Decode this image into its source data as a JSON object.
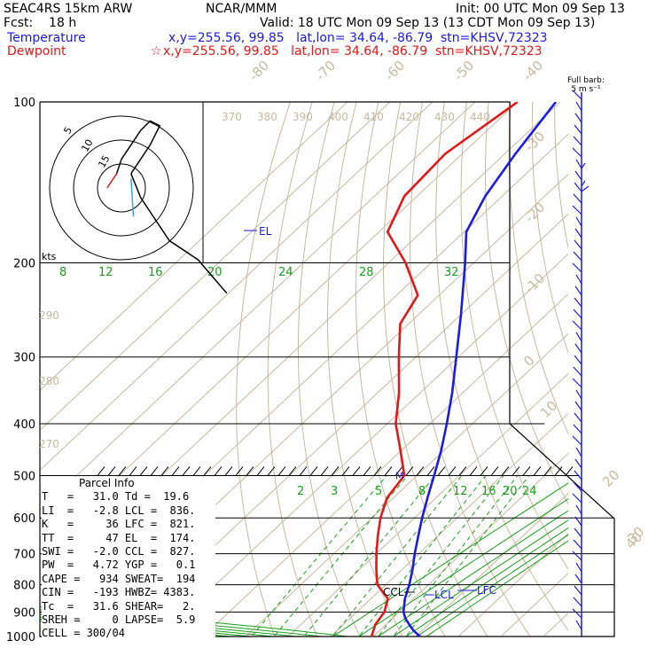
{
  "header": {
    "line1_left": "SEAC4RS 15km ARW",
    "line1_center": "NCAR/MMM",
    "line1_right": "Init: 00 UTC Mon 09 Sep 13",
    "line2_left": "Fcst:    18 h",
    "line2_right": "Valid: 18 UTC Mon 09 Sep 13 (13 CDT Mon 09 Sep 13)",
    "temp_label": "Temperature",
    "temp_info": "x,y=255.56, 99.85   lat,lon= 34.64, -86.79  stn=KHSV,72323",
    "dew_label": "Dewpoint",
    "dew_info": "x,y=255.56, 99.85   lat,lon= 34.64, -86.79  stn=KHSV,72323",
    "dew_marker": "☆"
  },
  "barb_header": {
    "line1": "Full barb:",
    "line2": "5 m s⁻¹"
  },
  "colors": {
    "temperature": "#1a1ae6",
    "dewpoint": "#e01818",
    "isotherm": "#c8b89c",
    "mixing_ratio": "#19a019",
    "moist_adiabat": "#19a019",
    "dry_adiabat": "#c8b89c",
    "isobar": "#000000"
  },
  "parcel": {
    "title": "Parcel Info",
    "rows": [
      "T   =   31.0 Td =  19.6",
      "LI  =   -2.8 LCL =  836.",
      "K   =     36 LFC =  821.",
      "TT  =     47 EL  =  174.",
      "SWI =   -2.0 CCL =  827.",
      "PW  =   4.72 YGP =   0.1",
      "CAPE =   934 SWEAT=  194",
      "CIN =   -193 HWBZ= 4383.",
      "Tc  =   31.6 SHEAR=   2.",
      "SREH =     0 LAPSE=  5.9",
      "CELL = 300/04"
    ]
  },
  "chart_data": {
    "type": "line",
    "title": "",
    "y_axis": {
      "scale": "log-pressure",
      "units": "hPa",
      "range": [
        1000,
        100
      ],
      "ticks": [
        100,
        200,
        300,
        400,
        500,
        600,
        700,
        800,
        900,
        1000
      ]
    },
    "isotherm_labels": [
      "-80",
      "-70",
      "-60",
      "-50",
      "-40",
      "-30",
      "-20",
      "-10",
      "0",
      "10",
      "20",
      "30",
      "40"
    ],
    "theta_labels_upper": [
      "370",
      "380",
      "390",
      "400",
      "410",
      "420",
      "430",
      "440"
    ],
    "theta_labels_left": [
      "290",
      "280",
      "270"
    ],
    "mixing_ratio_labels_upper": [
      "8",
      "12",
      "16",
      "20",
      "24",
      "28",
      "32"
    ],
    "mixing_ratio_labels_lower": [
      "2",
      "3",
      "5",
      "8",
      "12",
      "16",
      "20",
      "24"
    ],
    "hodograph": {
      "units_label": "kts",
      "ring_labels": [
        "15",
        "10",
        "5"
      ],
      "trace_knots": [
        [
          -3,
          0
        ],
        [
          -1,
          -3
        ],
        [
          0,
          -6
        ],
        [
          2,
          -9
        ],
        [
          4,
          -12
        ],
        [
          6,
          -14
        ],
        [
          8,
          -13
        ],
        [
          6,
          -9
        ],
        [
          2,
          -3
        ],
        [
          4,
          2
        ],
        [
          6,
          5
        ],
        [
          10,
          11
        ],
        [
          16,
          15
        ],
        [
          22,
          22
        ]
      ]
    },
    "annotations": [
      {
        "text": "EL",
        "pressure": 174
      },
      {
        "text": "M",
        "pressure": 500
      },
      {
        "text": "CCL",
        "pressure": 827
      },
      {
        "text": "LCL",
        "pressure": 836
      },
      {
        "text": "LFC",
        "pressure": 821
      }
    ],
    "series": [
      {
        "name": "Temperature",
        "color": "#1a1ae6",
        "points": [
          {
            "p": 1000,
            "t": 31.0
          },
          {
            "p": 975,
            "t": 28.0
          },
          {
            "p": 950,
            "t": 25.5
          },
          {
            "p": 925,
            "t": 23.0
          },
          {
            "p": 900,
            "t": 21.0
          },
          {
            "p": 875,
            "t": 19.5
          },
          {
            "p": 850,
            "t": 18.0
          },
          {
            "p": 800,
            "t": 15.5
          },
          {
            "p": 750,
            "t": 12.5
          },
          {
            "p": 700,
            "t": 9.0
          },
          {
            "p": 650,
            "t": 5.5
          },
          {
            "p": 600,
            "t": 1.8
          },
          {
            "p": 550,
            "t": -2.0
          },
          {
            "p": 500,
            "t": -6.0
          },
          {
            "p": 450,
            "t": -10.5
          },
          {
            "p": 400,
            "t": -16.0
          },
          {
            "p": 350,
            "t": -22.5
          },
          {
            "p": 300,
            "t": -30.5
          },
          {
            "p": 250,
            "t": -40.0
          },
          {
            "p": 200,
            "t": -52.0
          },
          {
            "p": 175,
            "t": -59.5
          },
          {
            "p": 150,
            "t": -64.0
          },
          {
            "p": 125,
            "t": -67.5
          },
          {
            "p": 100,
            "t": -71.0
          }
        ]
      },
      {
        "name": "Dewpoint",
        "color": "#e01818",
        "points": [
          {
            "p": 1000,
            "t": 19.6
          },
          {
            "p": 950,
            "t": 17.5
          },
          {
            "p": 900,
            "t": 16.5
          },
          {
            "p": 850,
            "t": 14.0
          },
          {
            "p": 800,
            "t": 8.0
          },
          {
            "p": 750,
            "t": 4.0
          },
          {
            "p": 700,
            "t": 0.0
          },
          {
            "p": 650,
            "t": -4.0
          },
          {
            "p": 600,
            "t": -8.0
          },
          {
            "p": 550,
            "t": -11.5
          },
          {
            "p": 500,
            "t": -13.0
          },
          {
            "p": 450,
            "t": -20.0
          },
          {
            "p": 400,
            "t": -28.0
          },
          {
            "p": 350,
            "t": -35.0
          },
          {
            "p": 300,
            "t": -44.0
          },
          {
            "p": 260,
            "t": -52.0
          },
          {
            "p": 230,
            "t": -55.0
          },
          {
            "p": 200,
            "t": -66.0
          },
          {
            "p": 175,
            "t": -78.0
          },
          {
            "p": 150,
            "t": -83.0
          },
          {
            "p": 125,
            "t": -84.0
          },
          {
            "p": 100,
            "t": -80.0
          }
        ]
      }
    ]
  }
}
